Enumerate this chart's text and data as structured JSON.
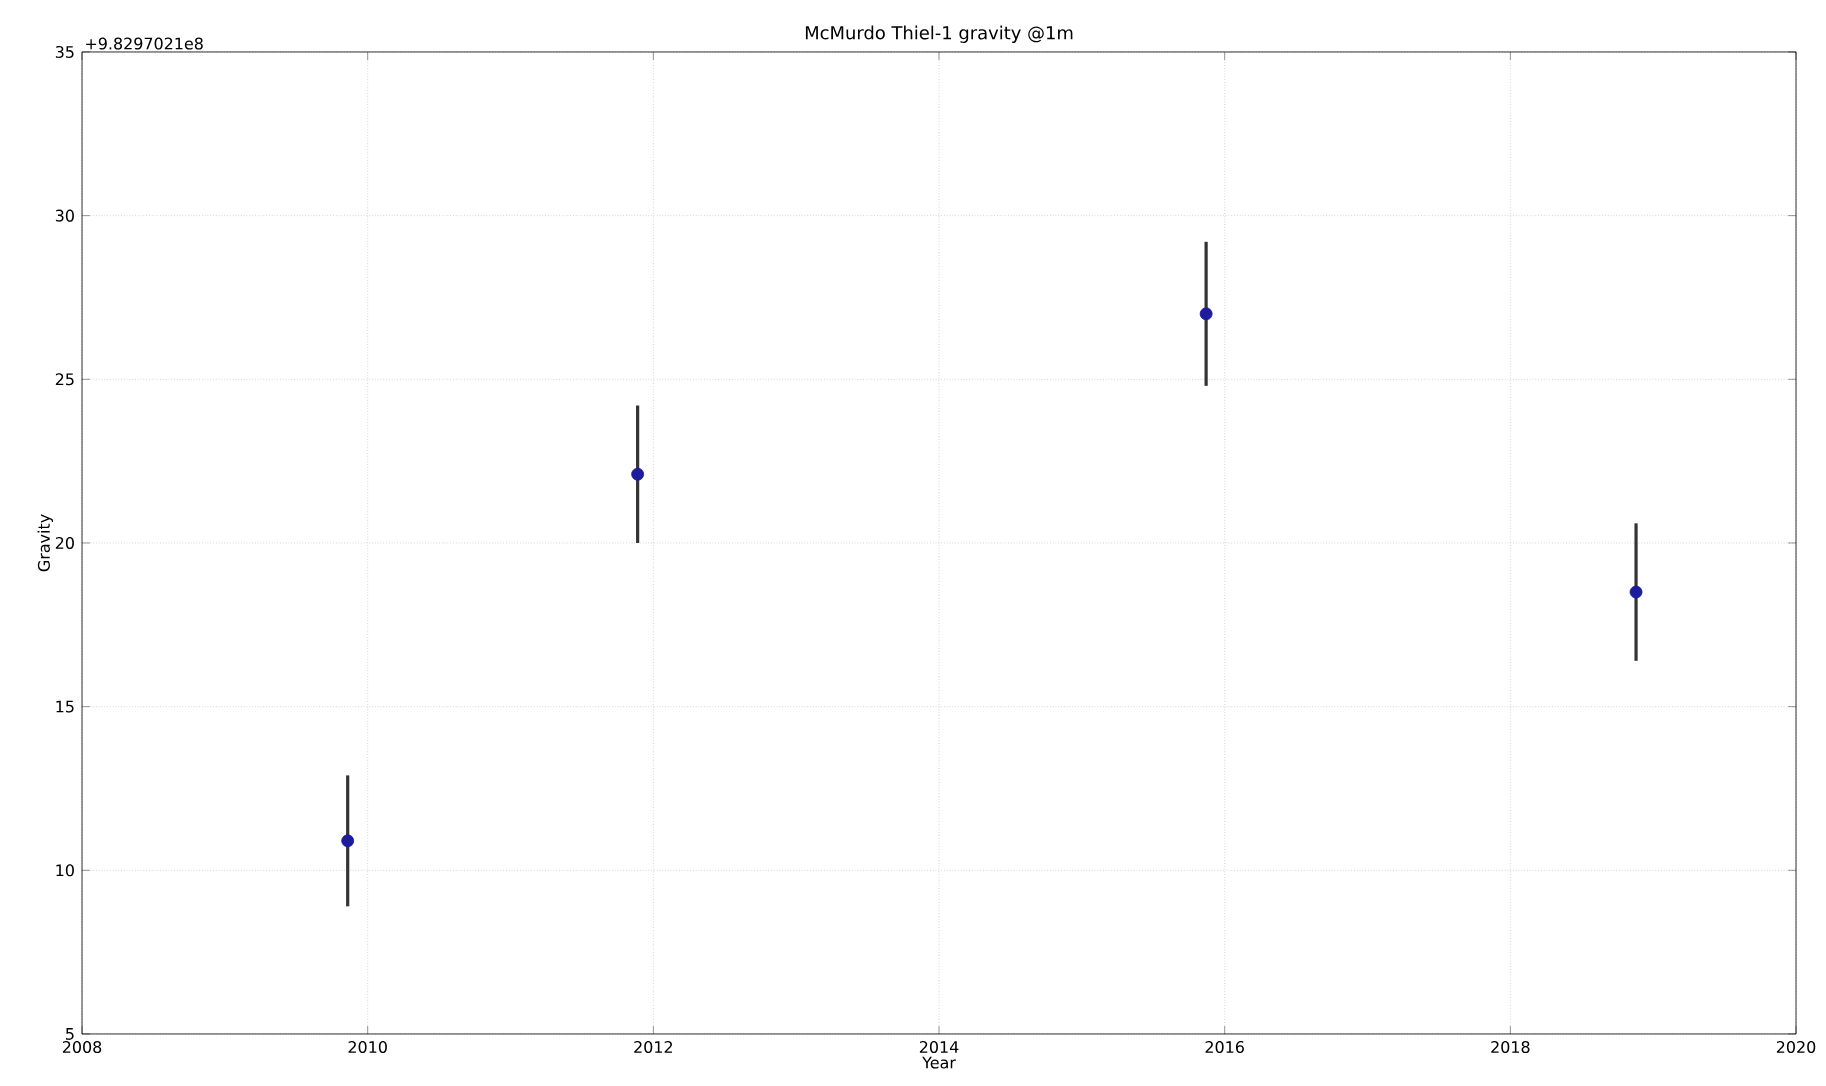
{
  "chart_data": {
    "type": "scatter",
    "title": "McMurdo Thiel-1 gravity @1m",
    "xlabel": "Year",
    "ylabel": "Gravity",
    "annotations": [
      "+9.8297021e8"
    ],
    "x": [
      2009.86,
      2011.89,
      2015.87,
      2018.88
    ],
    "values": [
      10.9,
      22.1,
      27.0,
      18.5
    ],
    "errors": [
      2.0,
      2.1,
      2.2,
      2.1
    ],
    "color": "#1c1c9c",
    "grid": true,
    "xlim": [
      2008,
      2020
    ],
    "xticks": [
      2008,
      2010,
      2012,
      2014,
      2016,
      2018,
      2020
    ],
    "ylim": [
      5,
      35
    ],
    "yticks": [
      5,
      10,
      15,
      20,
      25,
      30,
      35
    ]
  }
}
